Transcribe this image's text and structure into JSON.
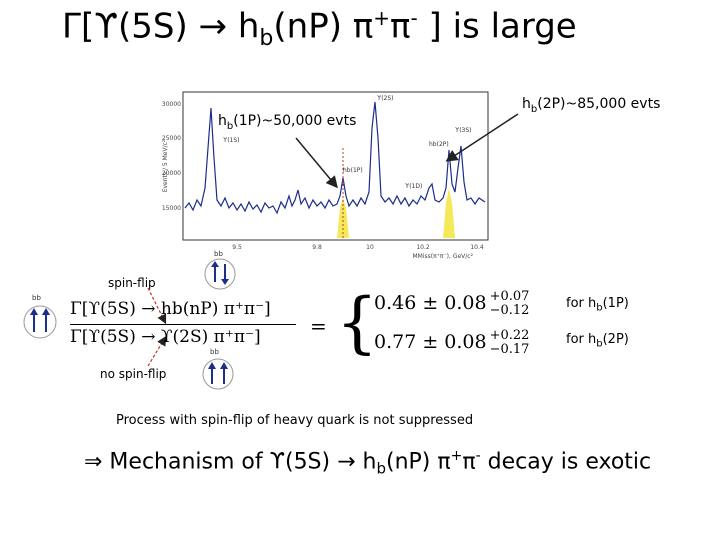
{
  "title": {
    "gamma": "Γ[",
    "upsilon": "ϒ(5S) ",
    "arrow": "→",
    "h": " h",
    "h_sub": "b",
    "np": "(n",
    "p": "P) ",
    "pi1": "π",
    "plus": "+",
    "pi2": "π",
    "minus": "-",
    "rest": " ] is large"
  },
  "plot": {
    "ylabel": "Events / 5 MeV/c²",
    "xlabel": "MMiss(π⁺π⁻), GeV/c²",
    "yticks": [
      "15000",
      "20000",
      "25000",
      "30000"
    ],
    "xticks": [
      "9.5",
      "9.8",
      "10",
      "10.2",
      "10.4"
    ],
    "peaks": [
      "ϒ(1S)",
      "ϒ(2S)",
      "ϒ(1D)",
      "hb(1P)",
      "hb(2P)",
      "ϒ(3S)"
    ]
  },
  "labels": {
    "hb1": {
      "pre": "h",
      "sub": "b",
      "post": "(1P)~50,000 evts"
    },
    "hb2": {
      "pre": "h",
      "sub": "b",
      "post": "(2P)~85,000 evts"
    },
    "bb_top": "bb",
    "bb_bot": "bb",
    "bb_left": "bb",
    "spin_flip": "spin-flip",
    "no_spin_flip": "no spin-flip",
    "for1": {
      "pre": "for h",
      "sub": "b",
      "post": "(1P)"
    },
    "for2": {
      "pre": "for h",
      "sub": "b",
      "post": "(2P)"
    }
  },
  "ratio": {
    "num": "Γ[ϒ(5S) → hb(nP) π⁺π⁻]",
    "den": "Γ[ϒ(5S) → ϒ(2S) π⁺π⁻]",
    "equals": "="
  },
  "measurements": [
    {
      "value": "0.46 ± 0.08",
      "up": "+0.07",
      "down": "−0.12"
    },
    {
      "value": "0.77 ± 0.08",
      "up": "+0.22",
      "down": "−0.17"
    }
  ],
  "process_text": "Process with spin-flip of heavy quark is not suppressed",
  "conclusion": {
    "implies": "⇒",
    "text": "  Mechanism of ",
    "upsilon": "ϒ(5S) ",
    "arrow": "→",
    "h": " h",
    "h_sub": "b",
    "np": "(nP) ",
    "pi1": "π",
    "plus": "+",
    "pi2": "π",
    "minus": "-",
    "rest": " decay is exotic"
  }
}
